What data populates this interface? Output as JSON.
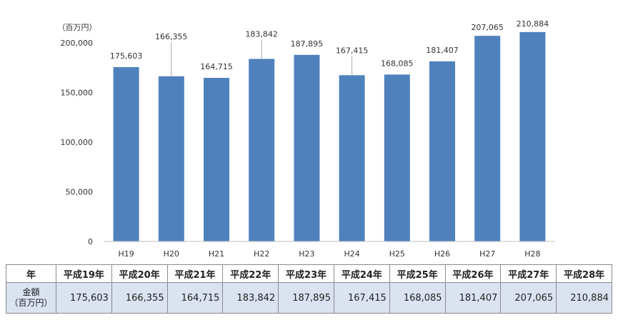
{
  "chart_data": {
    "type": "bar",
    "unit_label": "（百万円）",
    "categories": [
      "H19",
      "H20",
      "H21",
      "H22",
      "H23",
      "H24",
      "H25",
      "H26",
      "H27",
      "H28"
    ],
    "values": [
      175603,
      166355,
      164715,
      183842,
      187895,
      167415,
      168085,
      181407,
      207065,
      210884
    ],
    "data_labels": [
      "175,603",
      "166,355",
      "164,715",
      "183,842",
      "187,895",
      "167,415",
      "168,085",
      "181,407",
      "207,065",
      "210,884"
    ],
    "ylim": [
      0,
      200000
    ],
    "yticks": [
      0,
      50000,
      100000,
      150000,
      200000
    ],
    "ytick_labels": [
      "0",
      "50,000",
      "100,000",
      "150,000",
      "200,000"
    ],
    "bar_color": "#4f81bd",
    "grid": false,
    "legend": "none"
  },
  "table": {
    "corner": "年",
    "headers": [
      "平成19年",
      "平成20年",
      "平成21年",
      "平成22年",
      "平成23年",
      "平成24年",
      "平成25年",
      "平成26年",
      "平成27年",
      "平成28年"
    ],
    "row_label_line1": "金額",
    "row_label_line2": "（百万円）",
    "cells": [
      "175,603",
      "166,355",
      "164,715",
      "183,842",
      "187,895",
      "167,415",
      "168,085",
      "181,407",
      "207,065",
      "210,884"
    ],
    "cell_color": "#dbe3f1"
  }
}
